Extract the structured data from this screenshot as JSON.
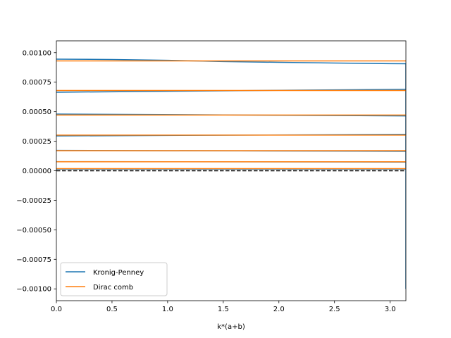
{
  "chart_data": {
    "type": "line",
    "title": "",
    "xlabel": "k*(a+b)",
    "ylabel": "",
    "xlim": [
      0,
      3.14159
    ],
    "ylim": [
      -0.0011,
      0.0011
    ],
    "xticks": [
      "0.0",
      "0.5",
      "1.0",
      "1.5",
      "2.0",
      "2.5",
      "3.0"
    ],
    "xtick_values": [
      0,
      0.5,
      1.0,
      1.5,
      2.0,
      2.5,
      3.0
    ],
    "yticks": [
      "−0.00100",
      "−0.00075",
      "−0.00050",
      "−0.00025",
      "0.00000",
      "0.00025",
      "0.00050",
      "0.00075",
      "0.00100"
    ],
    "ytick_values": [
      -0.001,
      -0.00075,
      -0.0005,
      -0.00025,
      0,
      0.00025,
      0.0005,
      0.00075,
      0.001
    ],
    "grid": false,
    "legend_position": "lower-left",
    "colors": {
      "kronig": "#1f77b4",
      "dirac": "#ff7f0e",
      "zero_line": "#000000"
    },
    "series": [
      {
        "name": "Kronig-Penney",
        "color": "#1f77b4",
        "bands": [
          {
            "x": [
              0,
              3.14159
            ],
            "y": [
              1.4e-05,
              1.4e-05
            ]
          },
          {
            "x": [
              0,
              3.14159
            ],
            "y": [
              7.7e-05,
              7.4e-05
            ]
          },
          {
            "x": [
              0,
              3.14159
            ],
            "y": [
              0.000172,
              0.000165
            ]
          },
          {
            "x": [
              0,
              3.14159
            ],
            "y": [
              0.000295,
              0.000308
            ]
          },
          {
            "x": [
              0,
              3.14159
            ],
            "y": [
              0.00048,
              0.000464
            ]
          },
          {
            "x": [
              0,
              3.14159
            ],
            "y": [
              0.000665,
              0.00069
            ]
          },
          {
            "x": [
              0,
              0.5,
              1.0,
              1.5,
              2.0,
              2.5,
              3.0,
              3.14159
            ],
            "y": [
              0.000945,
              0.000942,
              0.000935,
              0.000925,
              0.000918,
              0.000912,
              0.000907,
              0.000906
            ]
          },
          {
            "x": [
              3.14159,
              3.14159
            ],
            "y": [
              0.000906,
              -0.001
            ]
          }
        ]
      },
      {
        "name": "Dirac comb",
        "color": "#ff7f0e",
        "bands": [
          {
            "x": [
              0,
              3.14159
            ],
            "y": [
              1.8e-05,
              1.8e-05
            ]
          },
          {
            "x": [
              0,
              3.14159
            ],
            "y": [
              7.6e-05,
              7.6e-05
            ]
          },
          {
            "x": [
              0,
              3.14159
            ],
            "y": [
              0.00017,
              0.00017
            ]
          },
          {
            "x": [
              0,
              3.14159
            ],
            "y": [
              0.000302,
              0.000302
            ]
          },
          {
            "x": [
              0,
              3.14159
            ],
            "y": [
              0.000472,
              0.000472
            ]
          },
          {
            "x": [
              0,
              3.14159
            ],
            "y": [
              0.00068,
              0.00068
            ]
          },
          {
            "x": [
              0,
              3.14159
            ],
            "y": [
              0.00093,
              0.00093
            ]
          }
        ]
      }
    ],
    "reference_lines": [
      {
        "type": "horizontal",
        "y": 0,
        "style": "dashed",
        "color": "#000000"
      }
    ]
  }
}
